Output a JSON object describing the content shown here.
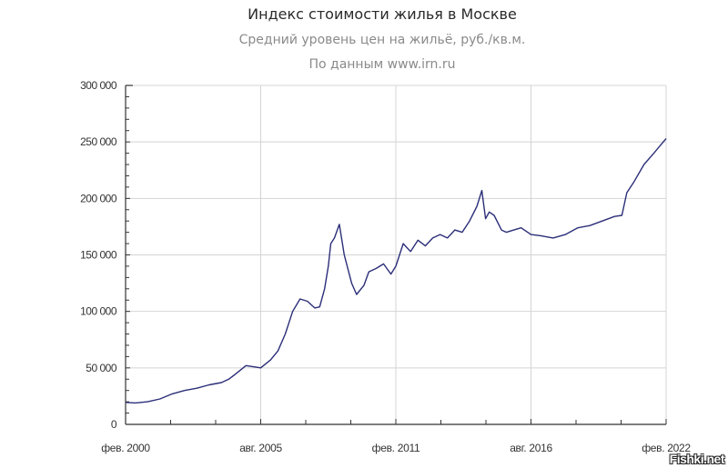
{
  "header": {
    "title": "Индекс стоимости жилья в Москве",
    "subtitle": "Средний уровень цен на жильё, руб./кв.м.",
    "source": "По данным www.irn.ru"
  },
  "watermark": "Fishki.net",
  "colors": {
    "line": "#2b2e78",
    "grid": "#d4d4d4",
    "axis": "#333333"
  },
  "chart_data": {
    "type": "line",
    "title": "Индекс стоимости жилья в Москве",
    "subtitle": "Средний уровень цен на жильё, руб./кв.м.",
    "annotation": "По данным www.irn.ru",
    "xlabel": "",
    "ylabel": "",
    "ylim": [
      0,
      300000
    ],
    "xlim": [
      "фев. 2000",
      "фев. 2022"
    ],
    "grid": true,
    "legend": "none",
    "y_ticks": [
      "0",
      "50 000",
      "100 000",
      "150 000",
      "200 000",
      "250 000",
      "300 000"
    ],
    "x_ticks": [
      "фев. 2000",
      "авг. 2005",
      "фев. 2011",
      "авг. 2016",
      "фев. 2022"
    ],
    "series": [
      {
        "name": "Средний уровень цен на жильё, руб./кв.м.",
        "x": [
          2000.1,
          2000.5,
          2001.0,
          2001.5,
          2002.0,
          2002.5,
          2003.0,
          2003.5,
          2004.0,
          2004.3,
          2004.6,
          2005.0,
          2005.3,
          2005.6,
          2006.0,
          2006.3,
          2006.6,
          2006.9,
          2007.2,
          2007.5,
          2007.8,
          2008.0,
          2008.2,
          2008.35,
          2008.45,
          2008.6,
          2008.8,
          2009.0,
          2009.3,
          2009.5,
          2009.8,
          2010.0,
          2010.3,
          2010.6,
          2010.9,
          2011.1,
          2011.4,
          2011.7,
          2012.0,
          2012.3,
          2012.6,
          2012.9,
          2013.2,
          2013.5,
          2013.8,
          2014.1,
          2014.4,
          2014.6,
          2014.75,
          2014.9,
          2015.1,
          2015.4,
          2015.6,
          2015.9,
          2016.2,
          2016.6,
          2017.0,
          2017.5,
          2018.0,
          2018.5,
          2019.0,
          2019.5,
          2020.0,
          2020.3,
          2020.5,
          2020.8,
          2021.2,
          2021.6,
          2022.1
        ],
        "values": [
          19500,
          19000,
          20000,
          22500,
          27000,
          30000,
          32000,
          35000,
          37000,
          40000,
          45000,
          52000,
          51000,
          50000,
          57000,
          65000,
          80000,
          100000,
          111000,
          109000,
          103000,
          104000,
          120000,
          140000,
          160000,
          165000,
          177000,
          150000,
          125000,
          115000,
          123000,
          135000,
          138000,
          142000,
          133000,
          140000,
          160000,
          153000,
          163000,
          158000,
          165000,
          168000,
          165000,
          172000,
          170000,
          180000,
          193000,
          207000,
          182000,
          188000,
          185000,
          172000,
          170000,
          172000,
          174000,
          168000,
          167000,
          165000,
          168000,
          174000,
          176000,
          180000,
          184000,
          185000,
          205000,
          215000,
          230000,
          240000,
          253000
        ]
      }
    ]
  }
}
